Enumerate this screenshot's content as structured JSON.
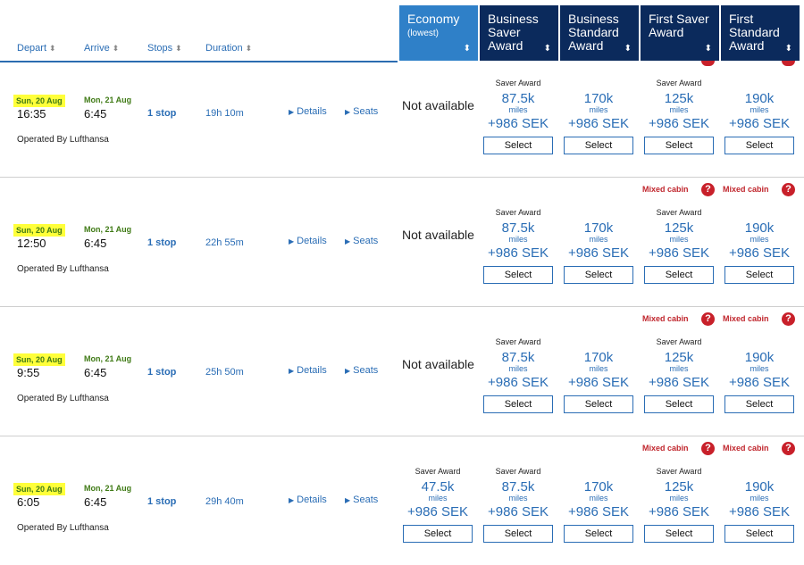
{
  "columns": {
    "depart": "Depart",
    "arrive": "Arrive",
    "stops": "Stops",
    "duration": "Duration",
    "sort_arrow": "⬍"
  },
  "cabins": [
    {
      "line1": "Economy",
      "line2": "(lowest)"
    },
    {
      "line1": "Business",
      "line2": "Saver",
      "line3": "Award"
    },
    {
      "line1": "Business",
      "line2": "Standard",
      "line3": "Award"
    },
    {
      "line1": "First Saver",
      "line2": "Award"
    },
    {
      "line1": "First",
      "line2": "Standard",
      "line3": "Award"
    }
  ],
  "labels": {
    "details": "Details",
    "seats": "Seats",
    "select": "Select",
    "miles_unit": "miles",
    "mixed_cabin": "Mixed cabin",
    "saver_award": "Saver Award",
    "not_available": "Not available",
    "question": "?"
  },
  "flights": [
    {
      "depart_date": "Sun, 20 Aug",
      "depart_time": "16:35",
      "arrive_date": "Mon, 21 Aug",
      "arrive_time": "6:45",
      "stops": "1 stop",
      "duration": "19h 10m",
      "operated": "Operated By Lufthansa",
      "economy": null,
      "fares": [
        {
          "miles": "87.5k",
          "sek": "+986 SEK",
          "award": "Saver Award"
        },
        {
          "miles": "170k",
          "sek": "+986 SEK",
          "award": ""
        },
        {
          "miles": "125k",
          "sek": "+986 SEK",
          "award": "Saver Award"
        },
        {
          "miles": "190k",
          "sek": "+986 SEK",
          "award": ""
        }
      ]
    },
    {
      "depart_date": "Sun, 20 Aug",
      "depart_time": "12:50",
      "arrive_date": "Mon, 21 Aug",
      "arrive_time": "6:45",
      "stops": "1 stop",
      "duration": "22h 55m",
      "operated": "Operated By Lufthansa",
      "economy": null,
      "fares": [
        {
          "miles": "87.5k",
          "sek": "+986 SEK",
          "award": "Saver Award"
        },
        {
          "miles": "170k",
          "sek": "+986 SEK",
          "award": ""
        },
        {
          "miles": "125k",
          "sek": "+986 SEK",
          "award": "Saver Award"
        },
        {
          "miles": "190k",
          "sek": "+986 SEK",
          "award": ""
        }
      ]
    },
    {
      "depart_date": "Sun, 20 Aug",
      "depart_time": "9:55",
      "arrive_date": "Mon, 21 Aug",
      "arrive_time": "6:45",
      "stops": "1 stop",
      "duration": "25h 50m",
      "operated": "Operated By Lufthansa",
      "economy": null,
      "fares": [
        {
          "miles": "87.5k",
          "sek": "+986 SEK",
          "award": "Saver Award"
        },
        {
          "miles": "170k",
          "sek": "+986 SEK",
          "award": ""
        },
        {
          "miles": "125k",
          "sek": "+986 SEK",
          "award": "Saver Award"
        },
        {
          "miles": "190k",
          "sek": "+986 SEK",
          "award": ""
        }
      ]
    },
    {
      "depart_date": "Sun, 20 Aug",
      "depart_time": "6:05",
      "arrive_date": "Mon, 21 Aug",
      "arrive_time": "6:45",
      "stops": "1 stop",
      "duration": "29h 40m",
      "operated": "Operated By Lufthansa",
      "economy": {
        "miles": "47.5k",
        "sek": "+986 SEK",
        "award": "Saver Award"
      },
      "fares": [
        {
          "miles": "87.5k",
          "sek": "+986 SEK",
          "award": "Saver Award"
        },
        {
          "miles": "170k",
          "sek": "+986 SEK",
          "award": ""
        },
        {
          "miles": "125k",
          "sek": "+986 SEK",
          "award": "Saver Award"
        },
        {
          "miles": "190k",
          "sek": "+986 SEK",
          "award": ""
        }
      ]
    }
  ],
  "colors": {
    "header_dark": "#0b2a5c",
    "header_active": "#2f80c8",
    "link_blue": "#2a6db5",
    "date_green": "#3f7a15",
    "highlight_yellow": "#ffff3a",
    "mixed_red": "#c0262d"
  }
}
